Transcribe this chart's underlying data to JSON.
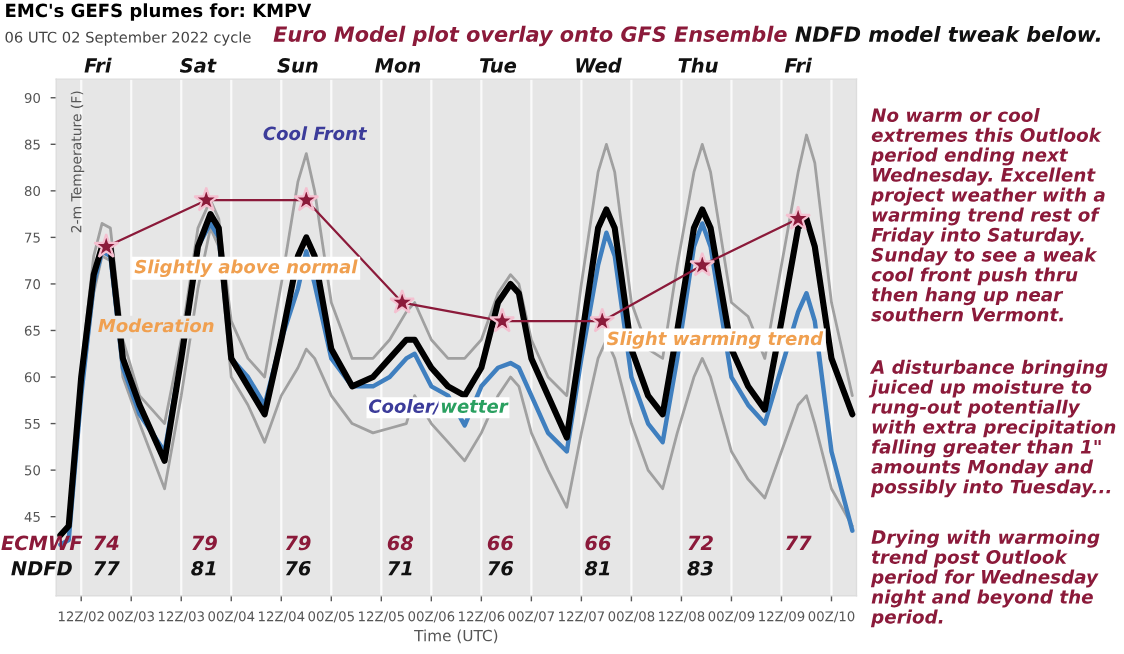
{
  "chart_data": {
    "type": "line",
    "title": "EMC's GEFS plumes for: KMPV",
    "subtitle": "06 UTC 02 September 2022 cycle",
    "xlabel": "Time (UTC)",
    "ylabel": "2-m Temperature (F)",
    "xlim": [
      "2022-09-02T06:00",
      "2022-09-10T06:00"
    ],
    "ylim": [
      36.5,
      92
    ],
    "yticks": [
      45,
      50,
      55,
      60,
      65,
      70,
      75,
      80,
      85,
      90
    ],
    "xticks": [
      {
        "value": "2022-09-02T12:00",
        "label": "12Z/02"
      },
      {
        "value": "2022-09-03T00:00",
        "label": "00Z/03"
      },
      {
        "value": "2022-09-03T12:00",
        "label": "12Z/03"
      },
      {
        "value": "2022-09-04T00:00",
        "label": "00Z/04"
      },
      {
        "value": "2022-09-04T12:00",
        "label": "12Z/04"
      },
      {
        "value": "2022-09-05T00:00",
        "label": "00Z/05"
      },
      {
        "value": "2022-09-05T12:00",
        "label": "12Z/05"
      },
      {
        "value": "2022-09-06T00:00",
        "label": "00Z/06"
      },
      {
        "value": "2022-09-06T12:00",
        "label": "12Z/06"
      },
      {
        "value": "2022-09-07T00:00",
        "label": "00Z/07"
      },
      {
        "value": "2022-09-07T12:00",
        "label": "12Z/07"
      },
      {
        "value": "2022-09-08T00:00",
        "label": "00Z/08"
      },
      {
        "value": "2022-09-08T12:00",
        "label": "12Z/08"
      },
      {
        "value": "2022-09-09T00:00",
        "label": "00Z/09"
      },
      {
        "value": "2022-09-09T12:00",
        "label": "12Z/09"
      },
      {
        "value": "2022-09-10T00:00",
        "label": "00Z/10"
      }
    ],
    "grid": "x",
    "x": [
      "2022-09-02T07:00",
      "2022-09-02T09:00",
      "2022-09-02T12:00",
      "2022-09-02T15:00",
      "2022-09-02T17:00",
      "2022-09-02T19:00",
      "2022-09-02T22:00",
      "2022-09-03T02:00",
      "2022-09-03T08:00",
      "2022-09-03T12:00",
      "2022-09-03T16:00",
      "2022-09-03T19:00",
      "2022-09-03T21:00",
      "2022-09-04T00:00",
      "2022-09-04T04:00",
      "2022-09-04T08:00",
      "2022-09-04T12:00",
      "2022-09-04T16:00",
      "2022-09-04T18:00",
      "2022-09-04T20:00",
      "2022-09-05T00:00",
      "2022-09-05T05:00",
      "2022-09-05T10:00",
      "2022-09-05T14:00",
      "2022-09-05T18:00",
      "2022-09-05T20:00",
      "2022-09-06T00:00",
      "2022-09-06T04:00",
      "2022-09-06T08:00",
      "2022-09-06T12:00",
      "2022-09-06T16:00",
      "2022-09-06T19:00",
      "2022-09-06T21:00",
      "2022-09-07T00:00",
      "2022-09-07T04:00",
      "2022-09-07T08:30",
      "2022-09-07T12:00",
      "2022-09-07T16:00",
      "2022-09-07T18:00",
      "2022-09-07T20:00",
      "2022-09-08T00:00",
      "2022-09-08T04:00",
      "2022-09-08T07:30",
      "2022-09-08T11:00",
      "2022-09-08T15:00",
      "2022-09-08T17:00",
      "2022-09-08T19:00",
      "2022-09-09T00:00",
      "2022-09-09T04:00",
      "2022-09-09T08:00",
      "2022-09-09T12:00",
      "2022-09-09T16:00",
      "2022-09-09T18:00",
      "2022-09-09T20:00",
      "2022-09-10T00:00",
      "2022-09-10T05:00"
    ],
    "series": [
      {
        "color": "#a0a0a0",
        "values": [
          43,
          44,
          61,
          73,
          76.5,
          76,
          64,
          58,
          55,
          64,
          76,
          79,
          77,
          66,
          62,
          60,
          70,
          81,
          84,
          80,
          68,
          62,
          62,
          64,
          67,
          68,
          64,
          62,
          62,
          64,
          69,
          71,
          70,
          64,
          60,
          58,
          70,
          82,
          85,
          82,
          68,
          63,
          62,
          72,
          82,
          85,
          82,
          68,
          66.5,
          62,
          72,
          82,
          86,
          83,
          68,
          58
        ]
      },
      {
        "color": "#a0a0a0",
        "values": [
          43,
          44,
          58,
          69,
          73,
          72.5,
          60,
          55,
          48,
          58,
          69.5,
          76,
          74,
          60,
          57,
          53,
          58,
          61,
          63,
          62,
          58,
          55,
          54,
          54.5,
          55,
          58,
          55,
          53,
          51,
          54,
          58,
          60,
          59,
          54,
          50,
          46,
          54,
          62,
          64,
          62,
          55,
          50,
          48,
          54,
          60,
          62,
          60,
          52,
          49,
          47,
          52,
          57,
          58,
          55,
          48,
          44
        ]
      },
      {
        "color": "#3f7fbf",
        "values": [
          42,
          42.5,
          58,
          70,
          73.5,
          73,
          61,
          56,
          52,
          62,
          74,
          76.5,
          75,
          62,
          60,
          57,
          64,
          69.5,
          73.5,
          70,
          62,
          59,
          59,
          60,
          62,
          62.5,
          59,
          58,
          54.8,
          59,
          61,
          61.5,
          61,
          58,
          54,
          52,
          62,
          72,
          75.5,
          73,
          60,
          55,
          53,
          62,
          74,
          76.5,
          74,
          60,
          57,
          55,
          61,
          67,
          69,
          66,
          52,
          43.5
        ]
      },
      {
        "color": "#000000",
        "values": [
          43,
          44,
          60,
          71,
          74,
          74,
          62,
          57,
          51,
          62,
          74,
          77.5,
          76,
          62,
          59,
          56,
          64,
          73,
          75,
          73,
          63,
          59,
          60,
          62,
          64,
          64,
          61,
          59,
          58,
          61,
          68,
          70,
          69,
          62,
          58,
          53.5,
          64,
          76,
          78,
          76,
          63,
          58,
          56,
          65,
          76,
          78,
          76,
          63,
          59,
          56.5,
          66,
          76,
          77,
          74,
          62,
          56
        ]
      },
      {
        "color": "#8b1a3a",
        "marker": "star",
        "x": [
          "2022-09-02T18:00",
          "2022-09-03T18:00",
          "2022-09-04T18:00",
          "2022-09-05T17:00",
          "2022-09-06T17:00",
          "2022-09-07T17:00",
          "2022-09-08T17:00",
          "2022-09-09T16:00"
        ],
        "values": [
          74,
          79,
          79,
          68,
          66,
          66,
          72,
          77
        ]
      }
    ],
    "annotations": [
      "Euro Model plot overlay onto GFS Ensemble",
      "NDFD model tweak below.",
      "No warm or cool extremes this Outlook period ending next Wednesday. Excellent project weather with a warming trend rest of Friday into Saturday. Sunday to see a weak cool front push thru then hang up near southern Vermont.",
      "A disturbance bringing juiced up moisture to rung-out potentially with extra precipitation falling greater than 1\" amounts Monday and possibly into Tuesday...",
      "Drying with warmoing trend post Outlook period for Wednesday night and beyond the period.",
      "Cool Front",
      "Slightly above normal",
      "Moderation",
      "Cooler/",
      "wetter",
      "Slight warming trend",
      "ECMWF",
      "74",
      "79",
      "79",
      "68",
      "66",
      "66",
      "72",
      "77",
      "NDFD",
      "77",
      "81",
      "76",
      "71",
      "76",
      "81",
      "83",
      "Fri",
      "Sat",
      "Sun",
      "Mon",
      "Tue",
      "Wed",
      "Thu",
      "Fri"
    ]
  }
}
